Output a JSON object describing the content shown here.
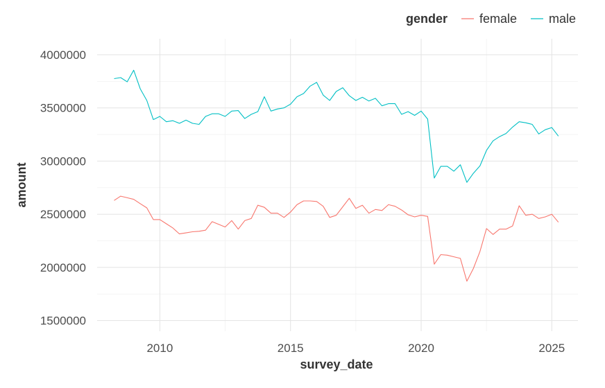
{
  "chart_data": {
    "type": "line",
    "title": "",
    "xlabel": "survey_date",
    "ylabel": "amount",
    "xlim": [
      2007.6,
      2026.0
    ],
    "ylim": [
      1400000,
      4150000
    ],
    "x_ticks": [
      2010,
      2015,
      2020,
      2025
    ],
    "y_ticks": [
      1500000,
      2000000,
      2500000,
      3000000,
      3500000,
      4000000
    ],
    "y_tick_labels": [
      "1500000",
      "2000000",
      "2500000",
      "3000000",
      "3500000",
      "4000000"
    ],
    "x_tick_labels": [
      "2010",
      "2015",
      "2020",
      "2025"
    ],
    "grid": true,
    "legend": {
      "title": "gender",
      "position": "top-right"
    },
    "series": [
      {
        "name": "female",
        "color": "#F8766D",
        "x": [
          2008.25,
          2008.5,
          2008.75,
          2009,
          2009.25,
          2009.5,
          2009.75,
          2010,
          2010.25,
          2010.5,
          2010.75,
          2011,
          2011.25,
          2011.5,
          2011.75,
          2012,
          2012.25,
          2012.5,
          2012.75,
          2013,
          2013.25,
          2013.5,
          2013.75,
          2014,
          2014.25,
          2014.5,
          2014.75,
          2015,
          2015.25,
          2015.5,
          2015.75,
          2016,
          2016.25,
          2016.5,
          2016.75,
          2017,
          2017.25,
          2017.5,
          2017.75,
          2018,
          2018.25,
          2018.5,
          2018.75,
          2019,
          2019.25,
          2019.5,
          2019.75,
          2020,
          2020.25,
          2020.5,
          2020.75,
          2021,
          2021.25,
          2021.5,
          2021.75,
          2022,
          2022.25,
          2022.5,
          2022.75,
          2023,
          2023.25,
          2023.5,
          2023.75,
          2024,
          2024.25,
          2024.5,
          2024.75,
          2025,
          2025.25
        ],
        "values": [
          2630000,
          2670000,
          2655000,
          2640000,
          2600000,
          2560000,
          2450000,
          2450000,
          2410000,
          2370000,
          2315000,
          2325000,
          2335000,
          2340000,
          2350000,
          2430000,
          2405000,
          2380000,
          2440000,
          2360000,
          2440000,
          2460000,
          2585000,
          2565000,
          2510000,
          2510000,
          2470000,
          2520000,
          2590000,
          2625000,
          2625000,
          2620000,
          2575000,
          2470000,
          2490000,
          2570000,
          2650000,
          2555000,
          2585000,
          2510000,
          2545000,
          2535000,
          2590000,
          2575000,
          2540000,
          2495000,
          2475000,
          2490000,
          2480000,
          2030000,
          2120000,
          2115000,
          2100000,
          2085000,
          1870000,
          1990000,
          2150000,
          2365000,
          2310000,
          2360000,
          2360000,
          2390000,
          2580000,
          2490000,
          2500000,
          2460000,
          2475000,
          2500000,
          2425000
        ]
      },
      {
        "name": "male",
        "color": "#00BFC4",
        "x": [
          2008.25,
          2008.5,
          2008.75,
          2009,
          2009.25,
          2009.5,
          2009.75,
          2010,
          2010.25,
          2010.5,
          2010.75,
          2011,
          2011.25,
          2011.5,
          2011.75,
          2012,
          2012.25,
          2012.5,
          2012.75,
          2013,
          2013.25,
          2013.5,
          2013.75,
          2014,
          2014.25,
          2014.5,
          2014.75,
          2015,
          2015.25,
          2015.5,
          2015.75,
          2016,
          2016.25,
          2016.5,
          2016.75,
          2017,
          2017.25,
          2017.5,
          2017.75,
          2018,
          2018.25,
          2018.5,
          2018.75,
          2019,
          2019.25,
          2019.5,
          2019.75,
          2020,
          2020.25,
          2020.5,
          2020.75,
          2021,
          2021.25,
          2021.5,
          2021.75,
          2022,
          2022.25,
          2022.5,
          2022.75,
          2023,
          2023.25,
          2023.5,
          2023.75,
          2024,
          2024.25,
          2024.5,
          2024.75,
          2025,
          2025.25
        ],
        "values": [
          3775000,
          3785000,
          3745000,
          3855000,
          3680000,
          3570000,
          3390000,
          3420000,
          3370000,
          3380000,
          3355000,
          3385000,
          3355000,
          3345000,
          3420000,
          3445000,
          3445000,
          3420000,
          3470000,
          3475000,
          3400000,
          3440000,
          3465000,
          3605000,
          3470000,
          3490000,
          3500000,
          3535000,
          3605000,
          3635000,
          3705000,
          3740000,
          3620000,
          3570000,
          3655000,
          3690000,
          3615000,
          3570000,
          3600000,
          3565000,
          3590000,
          3520000,
          3540000,
          3540000,
          3440000,
          3465000,
          3430000,
          3470000,
          3395000,
          2840000,
          2950000,
          2950000,
          2905000,
          2965000,
          2800000,
          2885000,
          2955000,
          3100000,
          3190000,
          3230000,
          3260000,
          3320000,
          3370000,
          3360000,
          3345000,
          3255000,
          3295000,
          3315000,
          3235000
        ]
      }
    ]
  }
}
